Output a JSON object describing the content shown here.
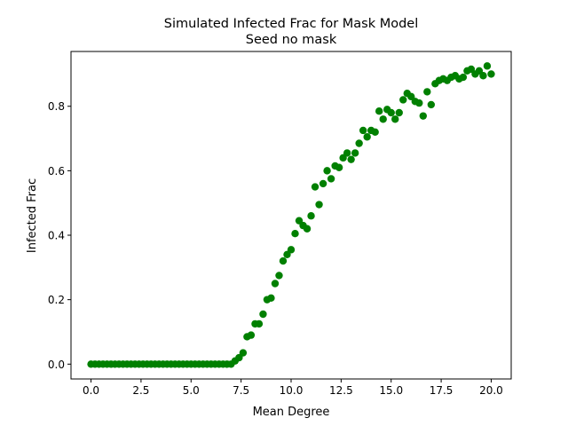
{
  "chart_data": {
    "type": "scatter",
    "title": "Simulated Infected Frac for Mask Model",
    "subtitle": "Seed no mask",
    "xlabel": "Mean Degree",
    "ylabel": "Infected Frac",
    "xlim": [
      -1.0,
      21.0
    ],
    "ylim": [
      -0.046,
      0.97
    ],
    "xticks": [
      0.0,
      2.5,
      5.0,
      7.5,
      10.0,
      12.5,
      15.0,
      17.5,
      20.0
    ],
    "xtick_labels": [
      "0.0",
      "2.5",
      "5.0",
      "7.5",
      "10.0",
      "12.5",
      "15.0",
      "17.5",
      "20.0"
    ],
    "yticks": [
      0.0,
      0.2,
      0.4,
      0.6,
      0.8
    ],
    "ytick_labels": [
      "0.0",
      "0.2",
      "0.4",
      "0.6",
      "0.8"
    ],
    "grid": false,
    "legend": "none",
    "marker_color": "#008000",
    "series": [
      {
        "x": [
          0.0,
          0.2,
          0.4,
          0.6,
          0.8,
          1.0,
          1.2,
          1.4,
          1.6,
          1.8,
          2.0,
          2.2,
          2.4,
          2.6,
          2.8,
          3.0,
          3.2,
          3.4,
          3.6,
          3.8,
          4.0,
          4.2,
          4.4,
          4.6,
          4.8,
          5.0,
          5.2,
          5.4,
          5.6,
          5.8,
          6.0,
          6.2,
          6.4,
          6.6,
          6.8,
          7.0,
          7.2,
          7.4,
          7.6,
          7.8,
          8.0,
          8.2,
          8.4,
          8.6,
          8.8,
          9.0,
          9.2,
          9.4,
          9.6,
          9.8,
          10.0,
          10.2,
          10.4,
          10.6,
          10.8,
          11.0,
          11.2,
          11.4,
          11.6,
          11.8,
          12.0,
          12.2,
          12.4,
          12.6,
          12.8,
          13.0,
          13.2,
          13.4,
          13.6,
          13.8,
          14.0,
          14.2,
          14.4,
          14.6,
          14.8,
          15.0,
          15.2,
          15.4,
          15.6,
          15.8,
          16.0,
          16.2,
          16.4,
          16.6,
          16.8,
          17.0,
          17.2,
          17.4,
          17.6,
          17.8,
          18.0,
          18.2,
          18.4,
          18.6,
          18.8,
          19.0,
          19.2,
          19.4,
          19.6,
          19.8,
          20.0
        ],
        "y": [
          0.0,
          0.0,
          0.0,
          0.0,
          0.0,
          0.0,
          0.0,
          0.0,
          0.0,
          0.0,
          0.0,
          0.0,
          0.0,
          0.0,
          0.0,
          0.0,
          0.0,
          0.0,
          0.0,
          0.0,
          0.0,
          0.0,
          0.0,
          0.0,
          0.0,
          0.0,
          0.0,
          0.0,
          0.0,
          0.0,
          0.0,
          0.0,
          0.0,
          0.0,
          0.0,
          0.0,
          0.01,
          0.02,
          0.035,
          0.085,
          0.09,
          0.125,
          0.125,
          0.155,
          0.2,
          0.205,
          0.25,
          0.275,
          0.32,
          0.34,
          0.355,
          0.405,
          0.445,
          0.43,
          0.42,
          0.46,
          0.55,
          0.495,
          0.56,
          0.6,
          0.575,
          0.615,
          0.61,
          0.64,
          0.655,
          0.635,
          0.655,
          0.685,
          0.725,
          0.705,
          0.725,
          0.72,
          0.785,
          0.76,
          0.79,
          0.78,
          0.76,
          0.78,
          0.82,
          0.84,
          0.83,
          0.815,
          0.81,
          0.77,
          0.845,
          0.805,
          0.87,
          0.88,
          0.885,
          0.88,
          0.89,
          0.895,
          0.885,
          0.89,
          0.91,
          0.915,
          0.9,
          0.91,
          0.895,
          0.925,
          0.9
        ]
      }
    ]
  }
}
